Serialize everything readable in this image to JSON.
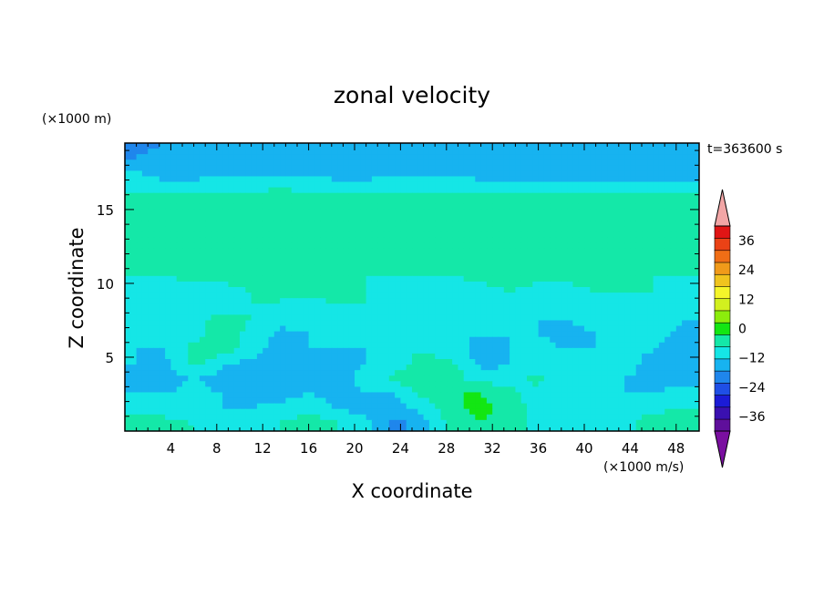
{
  "chart_data": {
    "type": "heatmap",
    "title": "zonal velocity",
    "xlabel": "X coordinate",
    "ylabel": "Z coordinate",
    "x_unit": "(×1000 m/s)",
    "y_unit": "(×1000 m)",
    "time_label": "t=363600 s",
    "xlim": [
      0,
      50
    ],
    "ylim": [
      0,
      19.5
    ],
    "x_ticks": [
      4,
      8,
      12,
      16,
      20,
      24,
      28,
      32,
      36,
      40,
      44,
      48
    ],
    "y_ticks": [
      5,
      10,
      15
    ],
    "colorbar": {
      "range": [
        -42,
        42
      ],
      "step": 6,
      "tick_values": [
        -36,
        -24,
        -12,
        0,
        12,
        24,
        36
      ],
      "tick_labels": [
        "−36",
        "−24",
        "−12",
        "0",
        "12",
        "24",
        "36"
      ],
      "colors": [
        "#5f0f9b",
        "#3a10b0",
        "#1b1bd6",
        "#1f4fe6",
        "#1f86ec",
        "#17b3f0",
        "#15e6e6",
        "#14e8a8",
        "#13e613",
        "#8ced0c",
        "#d2f01f",
        "#f5f52a",
        "#f0c41e",
        "#f09a1a",
        "#f06e16",
        "#ea4216",
        "#e01515"
      ],
      "under_color": "#7a0fa0",
      "over_color": "#f2a6a6"
    },
    "z_levels": [
      0.5,
      1.5,
      2.5,
      3.5,
      4.5,
      5.5,
      6.5,
      7.5,
      8.5,
      9.5,
      10.5,
      11.5,
      12.5,
      13.5,
      14.5,
      15.5,
      16.5,
      17.5,
      18.5,
      19.5
    ],
    "x_samples": [
      1,
      3.5,
      6,
      8.5,
      11,
      13.5,
      16,
      18.5,
      21,
      23.5,
      26,
      28.5,
      31,
      33.5,
      36,
      38.5,
      41,
      43.5,
      46,
      48.5
    ],
    "values": [
      [
        4,
        3,
        0,
        -3,
        -4,
        0,
        4,
        0,
        -4,
        -15,
        -8,
        2,
        6,
        2,
        -2,
        -4,
        -4,
        -2,
        4,
        5
      ],
      [
        -2,
        -4,
        -6,
        -6,
        -6,
        -4,
        -2,
        -6,
        -8,
        -8,
        -4,
        4,
        8,
        3,
        -2,
        -6,
        -6,
        -4,
        -2,
        0
      ],
      [
        -6,
        -6,
        -4,
        -6,
        -8,
        -8,
        -6,
        -8,
        -6,
        -6,
        2,
        6,
        6,
        2,
        -4,
        -6,
        -6,
        -6,
        -6,
        -4
      ],
      [
        -8,
        -8,
        -6,
        -8,
        -8,
        -8,
        -8,
        -8,
        -4,
        2,
        4,
        2,
        -2,
        -2,
        2,
        -4,
        -6,
        -6,
        -8,
        -8
      ],
      [
        -6,
        -8,
        2,
        -6,
        -8,
        -8,
        -8,
        -8,
        -6,
        -2,
        2,
        2,
        -8,
        -6,
        -2,
        -6,
        -6,
        -4,
        -8,
        -10
      ],
      [
        -6,
        -6,
        2,
        4,
        -4,
        -8,
        -6,
        -6,
        -6,
        -2,
        0,
        -4,
        -8,
        -6,
        -4,
        -6,
        -6,
        -4,
        -6,
        -10
      ],
      [
        -6,
        -6,
        -2,
        4,
        -2,
        -8,
        -6,
        -4,
        -6,
        -4,
        -6,
        -6,
        -6,
        -6,
        -6,
        -8,
        -6,
        -2,
        -4,
        -8
      ],
      [
        -4,
        -6,
        -2,
        2,
        0,
        -4,
        -4,
        -2,
        -4,
        -6,
        -6,
        -6,
        -6,
        -4,
        -6,
        -6,
        -4,
        -2,
        -2,
        -6
      ],
      [
        -4,
        -6,
        -6,
        -2,
        0,
        0,
        -2,
        0,
        0,
        -4,
        -6,
        -6,
        -4,
        -2,
        -4,
        -4,
        -2,
        -2,
        -2,
        -4
      ],
      [
        -4,
        -4,
        -4,
        -2,
        0,
        0,
        2,
        2,
        0,
        -2,
        -4,
        -4,
        -2,
        0,
        -2,
        -2,
        0,
        0,
        0,
        -2
      ],
      [
        0,
        0,
        2,
        2,
        4,
        4,
        2,
        0,
        0,
        0,
        0,
        0,
        2,
        4,
        2,
        2,
        4,
        2,
        0,
        0
      ],
      [
        2,
        2,
        4,
        4,
        4,
        4,
        4,
        2,
        2,
        2,
        2,
        2,
        2,
        4,
        4,
        4,
        4,
        2,
        2,
        2
      ],
      [
        4,
        4,
        4,
        4,
        4,
        4,
        2,
        2,
        2,
        4,
        2,
        0,
        2,
        2,
        4,
        4,
        4,
        2,
        2,
        2
      ],
      [
        4,
        4,
        4,
        4,
        4,
        4,
        2,
        2,
        2,
        2,
        2,
        0,
        2,
        2,
        2,
        4,
        4,
        4,
        2,
        2
      ],
      [
        4,
        4,
        4,
        4,
        2,
        2,
        2,
        0,
        2,
        2,
        2,
        0,
        0,
        2,
        2,
        2,
        4,
        4,
        4,
        4
      ],
      [
        4,
        4,
        4,
        4,
        4,
        4,
        4,
        4,
        4,
        4,
        4,
        4,
        4,
        4,
        4,
        4,
        4,
        4,
        4,
        4
      ],
      [
        -2,
        -4,
        -4,
        -2,
        -2,
        0,
        -2,
        -4,
        -4,
        -2,
        -2,
        -2,
        -4,
        -4,
        -4,
        -4,
        -4,
        -4,
        -4,
        -4
      ],
      [
        -6,
        -8,
        -8,
        -8,
        -8,
        -8,
        -8,
        -8,
        -8,
        -8,
        -8,
        -8,
        -8,
        -8,
        -8,
        -8,
        -8,
        -8,
        -8,
        -8
      ],
      [
        -12,
        -10,
        -10,
        -10,
        -10,
        -10,
        -10,
        -10,
        -10,
        -10,
        -10,
        -10,
        -10,
        -10,
        -10,
        -10,
        -10,
        -10,
        -10,
        -10
      ],
      [
        -14,
        -12,
        -12,
        -12,
        -12,
        -12,
        -12,
        -12,
        -12,
        -12,
        -12,
        -12,
        -12,
        -12,
        -12,
        -12,
        -12,
        -12,
        -12,
        -12
      ]
    ]
  }
}
